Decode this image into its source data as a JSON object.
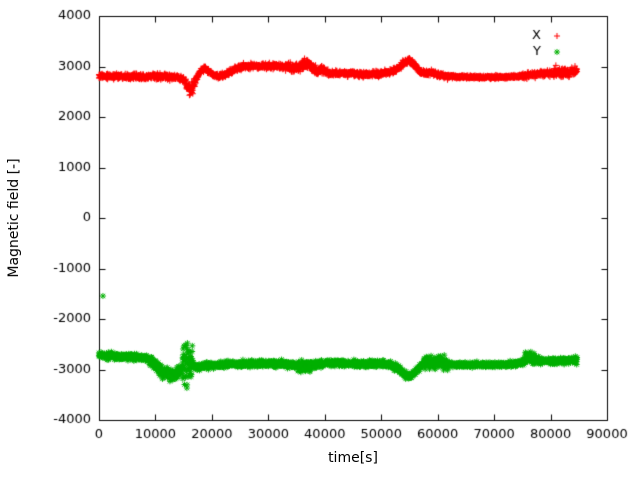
{
  "figure": {
    "background": "#ffffff"
  },
  "chart_data": {
    "type": "scatter",
    "title": "",
    "xlabel": "time[s]",
    "ylabel": "Magnetic field [-]",
    "xlim": [
      0,
      90000
    ],
    "ylim": [
      -4000,
      4000
    ],
    "x_ticks": [
      0,
      10000,
      20000,
      30000,
      40000,
      50000,
      60000,
      70000,
      80000,
      90000
    ],
    "y_ticks": [
      -4000,
      -3000,
      -2000,
      -1000,
      0,
      1000,
      2000,
      3000,
      4000
    ],
    "grid": false,
    "legend_position": "top-right-inside",
    "axis_color": "#000000",
    "sample_step_s": 30,
    "series": [
      {
        "name": "X",
        "color": "#ff0000",
        "marker": "plus",
        "base_sigma": 27,
        "t_end": 84700,
        "noise_regions": [
          {
            "from": 15200,
            "to": 17000,
            "sigma": 55
          },
          {
            "from": 33000,
            "to": 40000,
            "sigma": 45
          },
          {
            "from": 62000,
            "to": 75000,
            "sigma": 16
          },
          {
            "from": 80500,
            "to": 84700,
            "sigma": 45
          }
        ],
        "keypoints": [
          [
            0,
            2810
          ],
          [
            2000,
            2800
          ],
          [
            4000,
            2815
          ],
          [
            6000,
            2800
          ],
          [
            8000,
            2790
          ],
          [
            10000,
            2805
          ],
          [
            12000,
            2795
          ],
          [
            14000,
            2780
          ],
          [
            15000,
            2740
          ],
          [
            15600,
            2620
          ],
          [
            16100,
            2520
          ],
          [
            16600,
            2580
          ],
          [
            17200,
            2760
          ],
          [
            18000,
            2900
          ],
          [
            18800,
            2960
          ],
          [
            19600,
            2900
          ],
          [
            20400,
            2830
          ],
          [
            21200,
            2800
          ],
          [
            22500,
            2840
          ],
          [
            24000,
            2940
          ],
          [
            25500,
            3000
          ],
          [
            27000,
            3010
          ],
          [
            29000,
            3005
          ],
          [
            31000,
            3010
          ],
          [
            33000,
            3000
          ],
          [
            34500,
            2970
          ],
          [
            35500,
            2990
          ],
          [
            36500,
            3040
          ],
          [
            37200,
            3060
          ],
          [
            37800,
            2960
          ],
          [
            38600,
            2910
          ],
          [
            39400,
            2950
          ],
          [
            40200,
            2900
          ],
          [
            41000,
            2860
          ],
          [
            42500,
            2865
          ],
          [
            44000,
            2860
          ],
          [
            46000,
            2850
          ],
          [
            48000,
            2845
          ],
          [
            50000,
            2860
          ],
          [
            51500,
            2890
          ],
          [
            53000,
            2960
          ],
          [
            54200,
            3090
          ],
          [
            55000,
            3130
          ],
          [
            55800,
            3060
          ],
          [
            56600,
            2940
          ],
          [
            57400,
            2870
          ],
          [
            58200,
            2860
          ],
          [
            59000,
            2875
          ],
          [
            60000,
            2840
          ],
          [
            61000,
            2815
          ],
          [
            62500,
            2800
          ],
          [
            64000,
            2795
          ],
          [
            66000,
            2790
          ],
          [
            68000,
            2788
          ],
          [
            70000,
            2790
          ],
          [
            72000,
            2795
          ],
          [
            74000,
            2800
          ],
          [
            75500,
            2820
          ],
          [
            77000,
            2840
          ],
          [
            78500,
            2855
          ],
          [
            80000,
            2865
          ],
          [
            81200,
            2895
          ],
          [
            82400,
            2875
          ],
          [
            83500,
            2890
          ],
          [
            84700,
            2905
          ]
        ],
        "outliers": []
      },
      {
        "name": "Y",
        "color": "#00b000",
        "marker": "asterisk",
        "base_sigma": 30,
        "t_end": 84700,
        "noise_regions": [
          {
            "from": 9000,
            "to": 14800,
            "sigma": 60
          },
          {
            "from": 14800,
            "to": 16600,
            "sigma": 215
          },
          {
            "from": 35000,
            "to": 37500,
            "sigma": 55
          },
          {
            "from": 57500,
            "to": 62000,
            "sigma": 65
          },
          {
            "from": 62000,
            "to": 75000,
            "sigma": 22
          },
          {
            "from": 75300,
            "to": 77200,
            "sigma": 60
          }
        ],
        "keypoints": [
          [
            0,
            -2720
          ],
          [
            2000,
            -2735
          ],
          [
            4000,
            -2745
          ],
          [
            6000,
            -2755
          ],
          [
            8000,
            -2765
          ],
          [
            9000,
            -2800
          ],
          [
            9800,
            -2900
          ],
          [
            10600,
            -3000
          ],
          [
            11400,
            -3050
          ],
          [
            12200,
            -3090
          ],
          [
            13000,
            -3110
          ],
          [
            13800,
            -3090
          ],
          [
            14400,
            -3020
          ],
          [
            15000,
            -2950
          ],
          [
            15800,
            -2900
          ],
          [
            16600,
            -2930
          ],
          [
            17400,
            -2950
          ],
          [
            18200,
            -2940
          ],
          [
            19000,
            -2925
          ],
          [
            20000,
            -2910
          ],
          [
            22000,
            -2900
          ],
          [
            24000,
            -2895
          ],
          [
            26000,
            -2885
          ],
          [
            28000,
            -2885
          ],
          [
            30000,
            -2880
          ],
          [
            32000,
            -2885
          ],
          [
            34000,
            -2905
          ],
          [
            35500,
            -2940
          ],
          [
            36500,
            -2955
          ],
          [
            37500,
            -2920
          ],
          [
            38500,
            -2895
          ],
          [
            40000,
            -2880
          ],
          [
            42000,
            -2870
          ],
          [
            44000,
            -2880
          ],
          [
            46000,
            -2890
          ],
          [
            48000,
            -2880
          ],
          [
            50000,
            -2885
          ],
          [
            51500,
            -2905
          ],
          [
            53000,
            -2975
          ],
          [
            54200,
            -3100
          ],
          [
            55000,
            -3140
          ],
          [
            55800,
            -3080
          ],
          [
            56600,
            -2960
          ],
          [
            57400,
            -2890
          ],
          [
            58200,
            -2855
          ],
          [
            59200,
            -2870
          ],
          [
            60200,
            -2840
          ],
          [
            61200,
            -2875
          ],
          [
            62500,
            -2900
          ],
          [
            64000,
            -2905
          ],
          [
            66000,
            -2905
          ],
          [
            68000,
            -2910
          ],
          [
            70000,
            -2905
          ],
          [
            72000,
            -2900
          ],
          [
            73500,
            -2890
          ],
          [
            75000,
            -2855
          ],
          [
            76000,
            -2770
          ],
          [
            76800,
            -2790
          ],
          [
            77600,
            -2820
          ],
          [
            79000,
            -2835
          ],
          [
            80500,
            -2840
          ],
          [
            82000,
            -2825
          ],
          [
            83500,
            -2815
          ],
          [
            84700,
            -2810
          ]
        ],
        "outliers": [
          [
            700,
            -1545
          ]
        ]
      }
    ]
  }
}
